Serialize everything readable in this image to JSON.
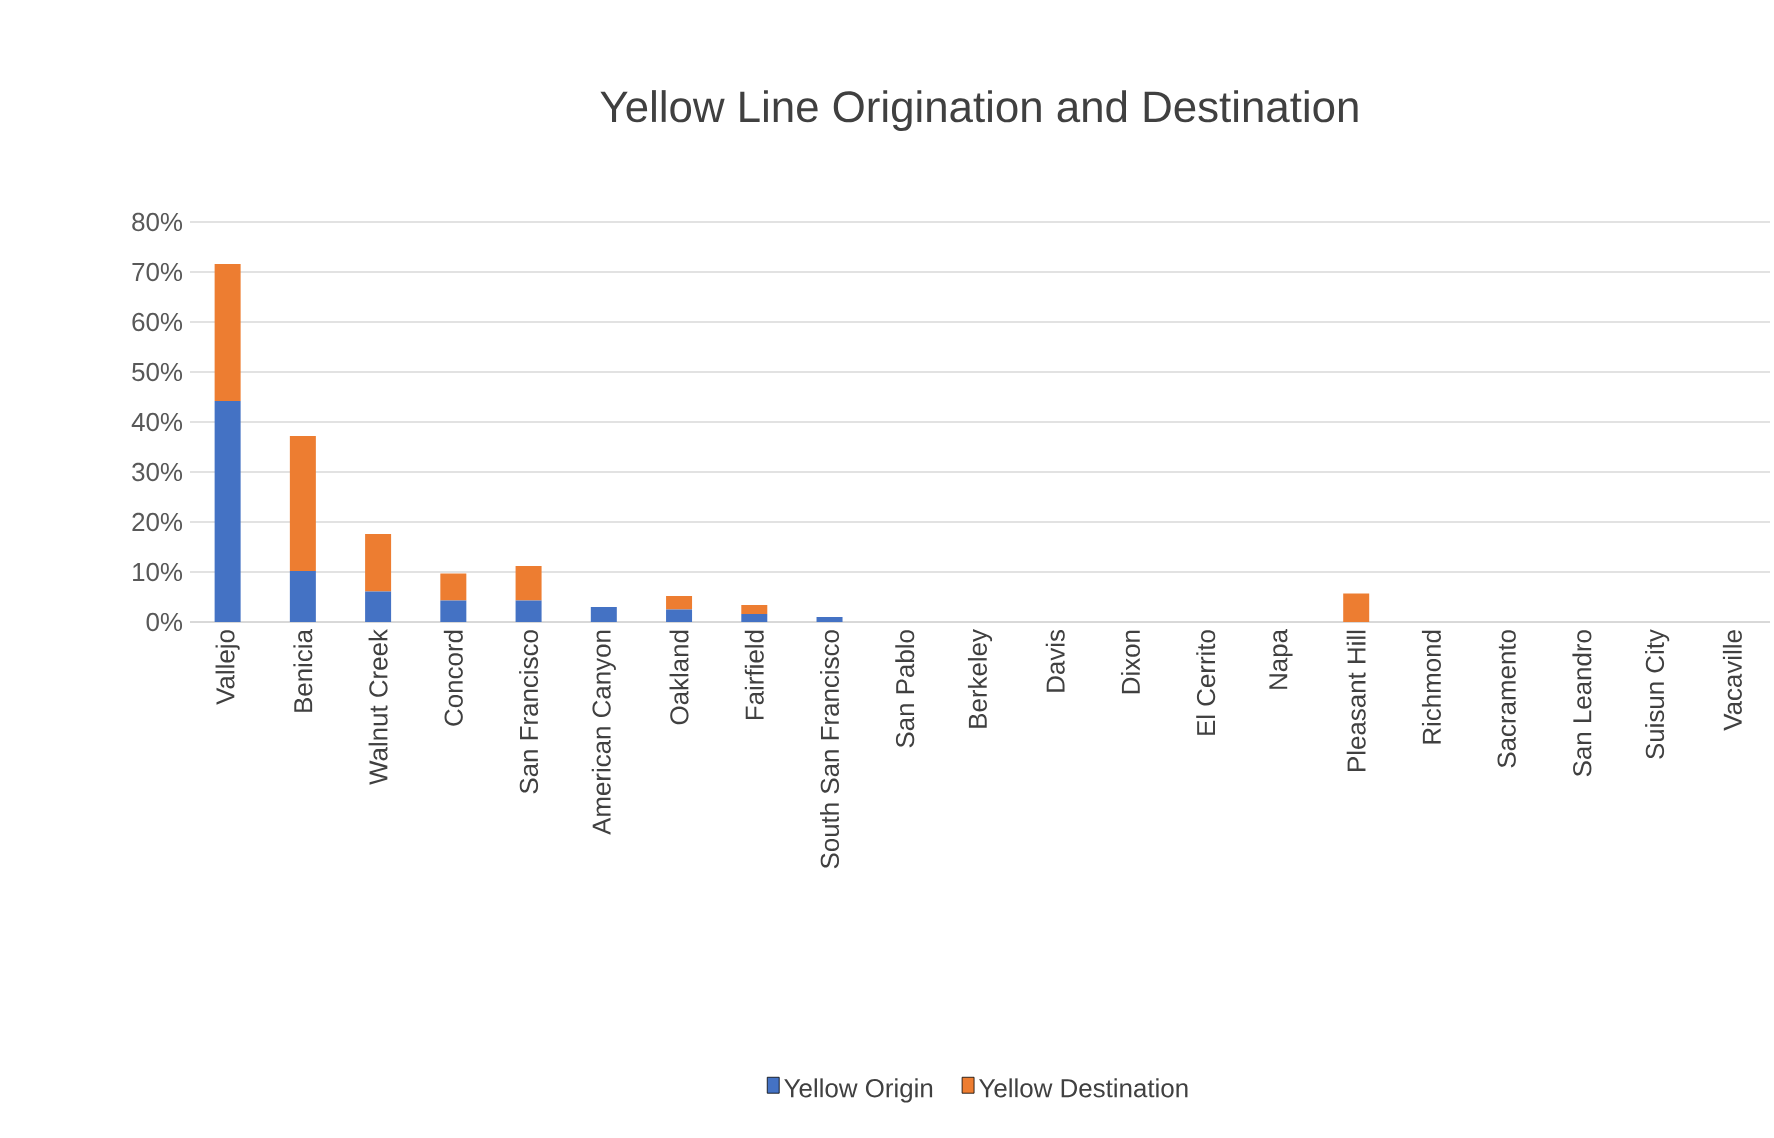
{
  "chart_data": {
    "type": "bar",
    "stacked": true,
    "title": "Yellow Line Origination and Destination",
    "categories": [
      "Vallejo",
      "Benicia",
      "Walnut Creek",
      "Concord",
      "San Francisco",
      "American Canyon",
      "Oakland",
      "Fairfield",
      "South San Francisco",
      "San Pablo",
      "Berkeley",
      "Davis",
      "Dixon",
      "El Cerrito",
      "Napa",
      "Pleasant Hill",
      "Richmond",
      "Sacramento",
      "San Leandro",
      "Suisun City",
      "Vacaville"
    ],
    "series": [
      {
        "name": "Yellow Origin",
        "color": "#4472c4",
        "values": [
          44.2,
          10.2,
          6.1,
          4.3,
          4.3,
          3.0,
          2.5,
          1.6,
          1.0,
          0,
          0,
          0,
          0,
          0,
          0,
          0,
          0,
          0,
          0,
          0,
          0
        ]
      },
      {
        "name": "Yellow Destination",
        "color": "#ed7d31",
        "values": [
          27.4,
          27.0,
          11.5,
          5.4,
          6.9,
          0,
          2.7,
          1.8,
          0,
          0,
          0,
          0,
          0,
          0,
          0,
          5.7,
          0,
          0,
          0,
          0,
          0
        ]
      }
    ],
    "ylim": [
      0,
      80
    ],
    "yticks": [
      {
        "value": 0,
        "label": "0%"
      },
      {
        "value": 10,
        "label": "10%"
      },
      {
        "value": 20,
        "label": "20%"
      },
      {
        "value": 30,
        "label": "30%"
      },
      {
        "value": 40,
        "label": "40%"
      },
      {
        "value": 50,
        "label": "50%"
      },
      {
        "value": 60,
        "label": "60%"
      },
      {
        "value": 70,
        "label": "70%"
      },
      {
        "value": 80,
        "label": "80%"
      }
    ],
    "grid": "y",
    "legend": "bottom"
  }
}
